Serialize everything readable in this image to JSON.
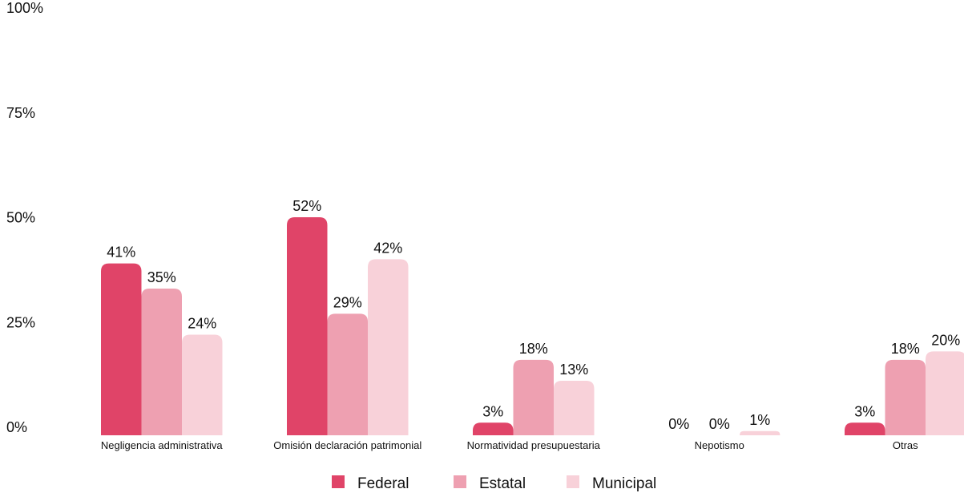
{
  "chart_data": {
    "type": "bar",
    "categories": [
      "Negligencia administrativa",
      "Omisión declaración patrimonial",
      "Normatividad presupuestaria",
      "Nepotismo",
      "Otras"
    ],
    "series": [
      {
        "name": "Federal",
        "values": [
          41,
          52,
          3,
          0,
          3
        ],
        "labels": [
          "41%",
          "52%",
          "3%",
          "0%",
          "3%"
        ],
        "color": "#e04468"
      },
      {
        "name": "Estatal",
        "values": [
          35,
          29,
          18,
          0,
          18
        ],
        "labels": [
          "35%",
          "29%",
          "18%",
          "0%",
          "18%"
        ],
        "color": "#eea0b1"
      },
      {
        "name": "Municipal",
        "values": [
          24,
          42,
          13,
          1,
          20
        ],
        "labels": [
          "24%",
          "42%",
          "13%",
          "1%",
          "20%"
        ],
        "color": "#f8d1d9"
      }
    ],
    "yticks": [
      "0%",
      "25%",
      "50%",
      "75%",
      "100%"
    ],
    "ylim": [
      0,
      100
    ],
    "grid": false,
    "legend": "bottom-center",
    "title": "",
    "xlabel": "",
    "ylabel": ""
  }
}
